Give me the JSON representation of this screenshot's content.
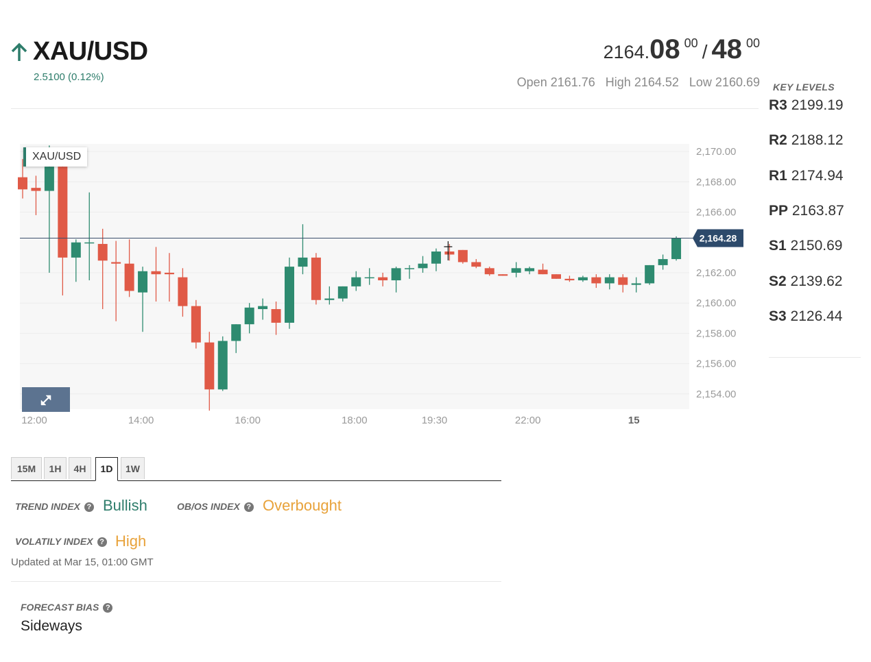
{
  "header": {
    "symbol": "XAU/USD",
    "change": "2.5100 (0.12%)",
    "direction_icon": "arrow-up-icon",
    "up_color": "#2e7d6b"
  },
  "quote": {
    "bid_base": "2164.",
    "bid_big": "08",
    "bid_sup": "00",
    "separator": "/",
    "ask_big": "48",
    "ask_sup": "00",
    "open": "Open 2161.76",
    "high": "High 2164.52",
    "low": "Low 2160.69"
  },
  "key_levels": {
    "title": "KEY LEVELS",
    "levels": [
      {
        "name": "R3",
        "value": "2199.19"
      },
      {
        "name": "R2",
        "value": "2188.12"
      },
      {
        "name": "R1",
        "value": "2174.94"
      },
      {
        "name": "PP",
        "value": "2163.87"
      },
      {
        "name": "S1",
        "value": "2150.69"
      },
      {
        "name": "S2",
        "value": "2139.62"
      },
      {
        "name": "S3",
        "value": "2126.44"
      }
    ]
  },
  "chart_data": {
    "type": "candlestick",
    "legend": "XAU/USD",
    "current_price": 2164.28,
    "current_price_label": "2,164.28",
    "ylim": [
      2153,
      2170.5
    ],
    "y_ticks": [
      {
        "value": 2170,
        "label": "2,170.00"
      },
      {
        "value": 2168,
        "label": "2,168.00"
      },
      {
        "value": 2166,
        "label": "2,166.00"
      },
      {
        "value": 2162,
        "label": "2,162.00"
      },
      {
        "value": 2160,
        "label": "2,160.00"
      },
      {
        "value": 2158,
        "label": "2,158.00"
      },
      {
        "value": 2156,
        "label": "2,156.00"
      },
      {
        "value": 2154,
        "label": "2,154.00"
      }
    ],
    "x_ticks": [
      {
        "index": 0,
        "label": "12:00"
      },
      {
        "index": 8,
        "label": "14:00"
      },
      {
        "index": 16,
        "label": "16:00"
      },
      {
        "index": 24,
        "label": "18:00"
      },
      {
        "index": 30,
        "label": "19:30"
      },
      {
        "index": 37,
        "label": "22:00"
      },
      {
        "index": 45,
        "label": "15"
      }
    ],
    "candles": [
      {
        "o": 2168.3,
        "h": 2169.5,
        "l": 2166.9,
        "c": 2167.5
      },
      {
        "o": 2167.6,
        "h": 2168.4,
        "l": 2165.8,
        "c": 2167.4
      },
      {
        "o": 2167.4,
        "h": 2170.4,
        "l": 2162.0,
        "c": 2169.0
      },
      {
        "o": 2169.0,
        "h": 2169.1,
        "l": 2160.5,
        "c": 2163.0
      },
      {
        "o": 2163.0,
        "h": 2164.2,
        "l": 2161.4,
        "c": 2164.0
      },
      {
        "o": 2164.0,
        "h": 2167.3,
        "l": 2161.5,
        "c": 2164.0
      },
      {
        "o": 2163.9,
        "h": 2164.9,
        "l": 2159.6,
        "c": 2162.8
      },
      {
        "o": 2162.7,
        "h": 2164.1,
        "l": 2158.8,
        "c": 2162.6
      },
      {
        "o": 2162.6,
        "h": 2164.2,
        "l": 2160.4,
        "c": 2160.8
      },
      {
        "o": 2160.7,
        "h": 2162.4,
        "l": 2158.1,
        "c": 2162.1
      },
      {
        "o": 2162.1,
        "h": 2163.7,
        "l": 2160.1,
        "c": 2161.9
      },
      {
        "o": 2162.0,
        "h": 2163.3,
        "l": 2160.1,
        "c": 2161.9
      },
      {
        "o": 2161.7,
        "h": 2162.3,
        "l": 2159.1,
        "c": 2159.8
      },
      {
        "o": 2159.8,
        "h": 2160.2,
        "l": 2157.0,
        "c": 2157.4
      },
      {
        "o": 2157.4,
        "h": 2158.1,
        "l": 2152.9,
        "c": 2154.3
      },
      {
        "o": 2154.3,
        "h": 2157.8,
        "l": 2154.2,
        "c": 2157.5
      },
      {
        "o": 2157.5,
        "h": 2158.6,
        "l": 2156.7,
        "c": 2158.6
      },
      {
        "o": 2158.6,
        "h": 2160.0,
        "l": 2158.0,
        "c": 2159.7
      },
      {
        "o": 2159.6,
        "h": 2160.3,
        "l": 2158.9,
        "c": 2159.8
      },
      {
        "o": 2159.6,
        "h": 2160.1,
        "l": 2157.9,
        "c": 2158.7
      },
      {
        "o": 2158.7,
        "h": 2163.0,
        "l": 2158.3,
        "c": 2162.4
      },
      {
        "o": 2162.4,
        "h": 2165.2,
        "l": 2161.9,
        "c": 2163.0
      },
      {
        "o": 2163.0,
        "h": 2163.3,
        "l": 2159.9,
        "c": 2160.2
      },
      {
        "o": 2160.2,
        "h": 2161.1,
        "l": 2159.9,
        "c": 2160.3
      },
      {
        "o": 2160.3,
        "h": 2161.1,
        "l": 2160.1,
        "c": 2161.1
      },
      {
        "o": 2161.1,
        "h": 2162.1,
        "l": 2160.8,
        "c": 2161.7
      },
      {
        "o": 2161.7,
        "h": 2162.3,
        "l": 2161.2,
        "c": 2161.7
      },
      {
        "o": 2161.7,
        "h": 2162.0,
        "l": 2161.1,
        "c": 2161.5
      },
      {
        "o": 2161.5,
        "h": 2162.4,
        "l": 2160.7,
        "c": 2162.3
      },
      {
        "o": 2162.3,
        "h": 2162.5,
        "l": 2161.6,
        "c": 2162.3
      },
      {
        "o": 2162.3,
        "h": 2163.1,
        "l": 2162.0,
        "c": 2162.6
      },
      {
        "o": 2162.6,
        "h": 2163.6,
        "l": 2162.1,
        "c": 2163.4
      },
      {
        "o": 2163.4,
        "h": 2163.9,
        "l": 2162.8,
        "c": 2163.2
      },
      {
        "o": 2163.5,
        "h": 2163.5,
        "l": 2162.6,
        "c": 2162.7
      },
      {
        "o": 2162.7,
        "h": 2162.9,
        "l": 2162.3,
        "c": 2162.4
      },
      {
        "o": 2162.3,
        "h": 2162.4,
        "l": 2161.8,
        "c": 2161.9
      },
      {
        "o": 2161.9,
        "h": 2161.9,
        "l": 2161.8,
        "c": 2161.8
      },
      {
        "o": 2162.0,
        "h": 2162.7,
        "l": 2161.7,
        "c": 2162.3
      },
      {
        "o": 2162.1,
        "h": 2162.4,
        "l": 2161.9,
        "c": 2162.3
      },
      {
        "o": 2162.2,
        "h": 2162.6,
        "l": 2161.9,
        "c": 2161.9
      },
      {
        "o": 2161.9,
        "h": 2161.9,
        "l": 2161.6,
        "c": 2161.6
      },
      {
        "o": 2161.6,
        "h": 2161.8,
        "l": 2161.4,
        "c": 2161.5
      },
      {
        "o": 2161.5,
        "h": 2161.8,
        "l": 2161.4,
        "c": 2161.7
      },
      {
        "o": 2161.7,
        "h": 2161.9,
        "l": 2161.0,
        "c": 2161.3
      },
      {
        "o": 2161.3,
        "h": 2161.9,
        "l": 2160.9,
        "c": 2161.7
      },
      {
        "o": 2161.7,
        "h": 2161.9,
        "l": 2160.7,
        "c": 2161.2
      },
      {
        "o": 2161.2,
        "h": 2161.7,
        "l": 2160.7,
        "c": 2161.3
      },
      {
        "o": 2161.3,
        "h": 2162.5,
        "l": 2161.2,
        "c": 2162.5
      },
      {
        "o": 2162.5,
        "h": 2163.2,
        "l": 2162.2,
        "c": 2162.9
      },
      {
        "o": 2162.9,
        "h": 2164.4,
        "l": 2162.8,
        "c": 2164.3
      }
    ],
    "grid": true,
    "up_color": "#2e8b70",
    "down_color": "#e05a47"
  },
  "timeframes": {
    "tabs": [
      "15M",
      "1H",
      "4H",
      "1D",
      "1W"
    ],
    "active": "1D"
  },
  "indices": {
    "trend_label": "TREND INDEX",
    "trend_value": "Bullish",
    "obos_label": "OB/OS INDEX",
    "obos_value": "Overbought",
    "volatility_label": "VOLATILY INDEX",
    "volatility_value": "High",
    "help_icon": "question-circle-icon",
    "bullish_color": "#2e7d6b",
    "warning_color": "#e8a23a"
  },
  "updated": "Updated at Mar 15, 01:00 GMT",
  "forecast": {
    "label": "FORECAST BIAS",
    "value": "Sideways"
  }
}
